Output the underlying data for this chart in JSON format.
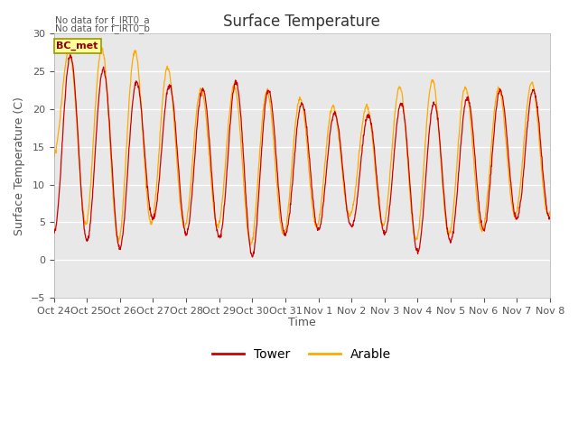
{
  "title": "Surface Temperature",
  "ylabel": "Surface Temperature (C)",
  "xlabel": "Time",
  "n_days": 15,
  "ylim": [
    -5,
    30
  ],
  "yticks": [
    -5,
    0,
    5,
    10,
    15,
    20,
    25,
    30
  ],
  "xtick_labels": [
    "Oct 24",
    "Oct 25",
    "Oct 26",
    "Oct 27",
    "Oct 28",
    "Oct 29",
    "Oct 30",
    "Oct 31",
    "Nov 1",
    "Nov 2",
    "Nov 3",
    "Nov 4",
    "Nov 5",
    "Nov 6",
    "Nov 7",
    "Nov 8"
  ],
  "tower_color": "#cc0000",
  "arable_color": "#ffaa00",
  "bc_met_color": "#ffff99",
  "bc_met_border": "#999900",
  "background_color": "#e8e8e8",
  "annotation_text1": "No data for f_IRT0_a",
  "annotation_text2": "No data for f_IRT0_b",
  "bc_met_label": "BC_met",
  "legend_tower": "Tower",
  "legend_arable": "Arable",
  "title_fontsize": 12,
  "label_fontsize": 9,
  "tick_fontsize": 8,
  "day_peaks_tower": [
    27.2,
    27.0,
    23.5,
    23.8,
    22.5,
    22.8,
    24.5,
    20.5,
    21.0,
    17.8,
    20.5,
    21.0,
    20.5,
    22.5,
    22.5
  ],
  "day_mins_tower": [
    3.5,
    2.5,
    1.5,
    5.5,
    3.5,
    3.0,
    0.5,
    3.5,
    4.0,
    4.5,
    3.5,
    1.0,
    2.5,
    4.0,
    5.5
  ],
  "day_peaks_arable": [
    27.0,
    28.5,
    27.5,
    27.8,
    22.5,
    23.0,
    23.0,
    21.5,
    21.5,
    19.0,
    22.0,
    24.0,
    23.5,
    22.0,
    23.5
  ],
  "day_mins_arable": [
    13.5,
    4.5,
    2.5,
    5.0,
    4.5,
    4.5,
    2.0,
    3.5,
    4.5,
    6.0,
    4.5,
    2.5,
    3.5,
    4.0,
    6.0
  ]
}
